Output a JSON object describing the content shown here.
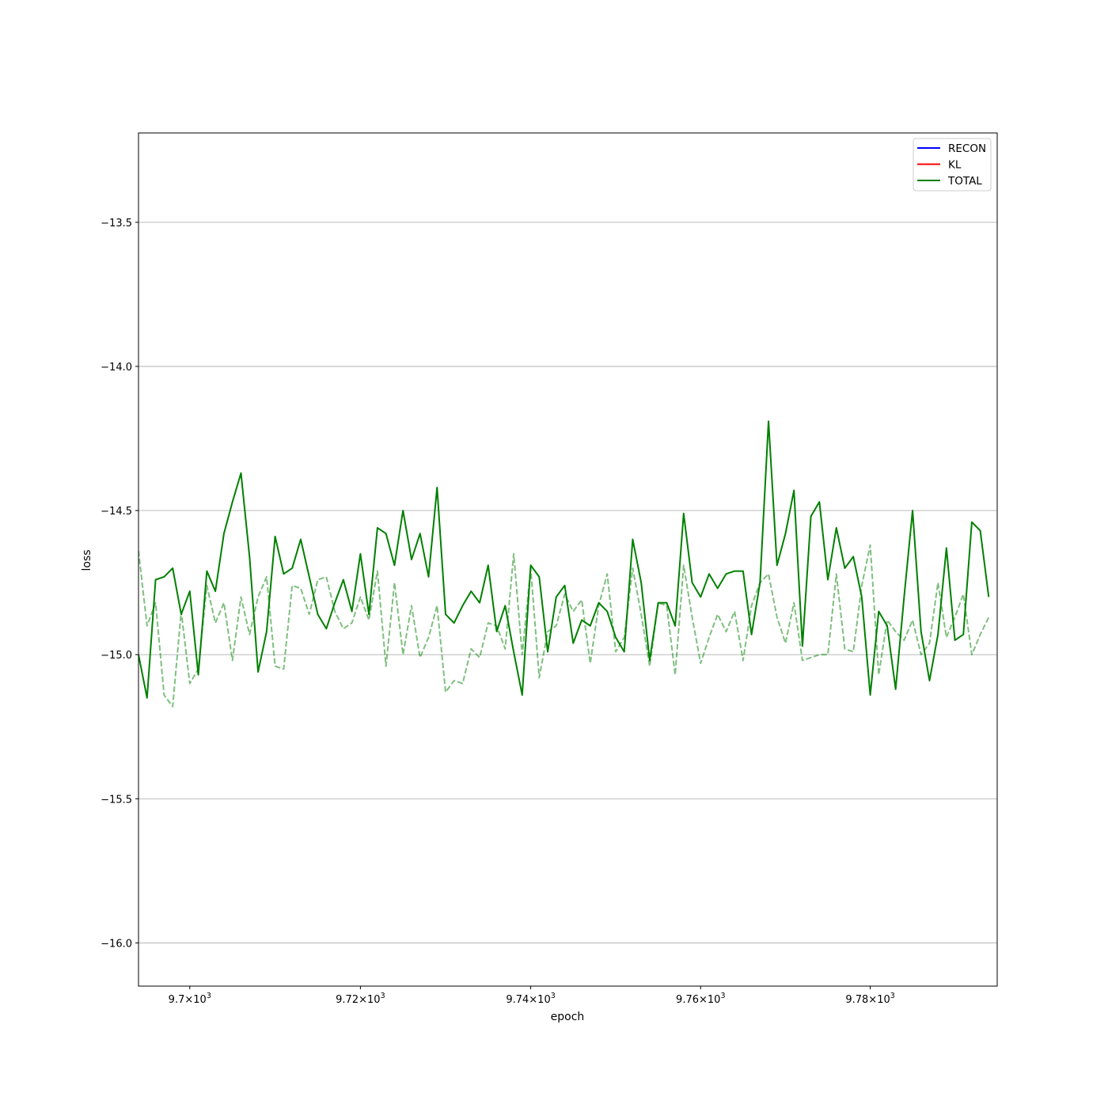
{
  "chart_data": {
    "type": "line",
    "xlabel": "epoch",
    "ylabel": "loss",
    "xscale": "log",
    "xlim": [
      9694,
      9795
    ],
    "ylim": [
      -16.15,
      -13.19
    ],
    "grid": "y",
    "legend_position": "top-right",
    "x_ticks": [
      {
        "value": 9700,
        "mantissa": "9.7",
        "base": "10",
        "exponent": "3"
      },
      {
        "value": 9720,
        "mantissa": "9.72",
        "base": "10",
        "exponent": "3"
      },
      {
        "value": 9740,
        "mantissa": "9.74",
        "base": "10",
        "exponent": "3"
      },
      {
        "value": 9760,
        "mantissa": "9.76",
        "base": "10",
        "exponent": "3"
      },
      {
        "value": 9780,
        "mantissa": "9.78",
        "base": "10",
        "exponent": "3"
      }
    ],
    "y_ticks": [
      {
        "value": -13.5,
        "label": "−13.5"
      },
      {
        "value": -14.0,
        "label": "−14.0"
      },
      {
        "value": -14.5,
        "label": "−14.5"
      },
      {
        "value": -15.0,
        "label": "−15.0"
      },
      {
        "value": -15.5,
        "label": "−15.5"
      },
      {
        "value": -16.0,
        "label": "−16.0"
      }
    ],
    "x_start": 9694,
    "x_step": 1,
    "series": [
      {
        "name": "RECON",
        "color": "#0000ff",
        "style": "solid",
        "values": []
      },
      {
        "name": "KL",
        "color": "#ff0000",
        "style": "solid",
        "values": []
      },
      {
        "name": "TOTAL",
        "color": "#008000",
        "style": "solid",
        "values": [
          -15.0,
          -15.15,
          -14.74,
          -14.73,
          -14.7,
          -14.86,
          -14.78,
          -15.07,
          -14.71,
          -14.78,
          -14.58,
          -14.47,
          -14.37,
          -14.66,
          -15.06,
          -14.92,
          -14.59,
          -14.72,
          -14.7,
          -14.6,
          -14.73,
          -14.86,
          -14.91,
          -14.82,
          -14.74,
          -14.85,
          -14.65,
          -14.86,
          -14.56,
          -14.58,
          -14.69,
          -14.5,
          -14.67,
          -14.58,
          -14.73,
          -14.42,
          -14.86,
          -14.89,
          -14.83,
          -14.78,
          -14.82,
          -14.69,
          -14.92,
          -14.83,
          -14.99,
          -15.14,
          -14.69,
          -14.73,
          -14.99,
          -14.8,
          -14.76,
          -14.96,
          -14.88,
          -14.9,
          -14.82,
          -14.85,
          -14.94,
          -14.99,
          -14.6,
          -14.75,
          -15.02,
          -14.82,
          -14.82,
          -14.9,
          -14.51,
          -14.75,
          -14.8,
          -14.72,
          -14.77,
          -14.72,
          -14.71,
          -14.71,
          -14.93,
          -14.75,
          -14.19,
          -14.69,
          -14.58,
          -14.43,
          -14.97,
          -14.52,
          -14.47,
          -14.74,
          -14.56,
          -14.7,
          -14.66,
          -14.8,
          -15.14,
          -14.85,
          -14.9,
          -15.12,
          -14.8,
          -14.5,
          -14.92,
          -15.09,
          -14.93,
          -14.63,
          -14.95,
          -14.93,
          -14.54,
          -14.57,
          -14.8
        ]
      },
      {
        "name": "",
        "color": "#008000",
        "style": "dashed",
        "opacity": 0.5,
        "values": [
          -14.64,
          -14.9,
          -14.82,
          -15.14,
          -15.18,
          -14.85,
          -15.1,
          -15.05,
          -14.76,
          -14.89,
          -14.82,
          -15.02,
          -14.8,
          -14.93,
          -14.8,
          -14.73,
          -15.04,
          -15.05,
          -14.76,
          -14.77,
          -14.86,
          -14.74,
          -14.73,
          -14.85,
          -14.91,
          -14.89,
          -14.8,
          -14.88,
          -14.71,
          -15.04,
          -14.75,
          -15.0,
          -14.83,
          -15.01,
          -14.94,
          -14.83,
          -15.13,
          -15.09,
          -15.1,
          -14.98,
          -15.01,
          -14.89,
          -14.9,
          -14.98,
          -14.65,
          -15.0,
          -14.7,
          -15.08,
          -14.92,
          -14.9,
          -14.79,
          -14.85,
          -14.81,
          -15.03,
          -14.83,
          -14.72,
          -14.99,
          -14.94,
          -14.7,
          -14.86,
          -15.04,
          -14.82,
          -14.83,
          -15.07,
          -14.69,
          -14.87,
          -15.03,
          -14.94,
          -14.86,
          -14.92,
          -14.85,
          -15.02,
          -14.83,
          -14.75,
          -14.72,
          -14.87,
          -14.96,
          -14.82,
          -15.02,
          -15.01,
          -15.0,
          -15.0,
          -14.72,
          -14.98,
          -14.99,
          -14.76,
          -14.62,
          -15.07,
          -14.88,
          -14.92,
          -14.95,
          -14.88,
          -15.0,
          -14.96,
          -14.75,
          -14.94,
          -14.87,
          -14.79,
          -15.0,
          -14.93,
          -14.87
        ]
      }
    ]
  }
}
